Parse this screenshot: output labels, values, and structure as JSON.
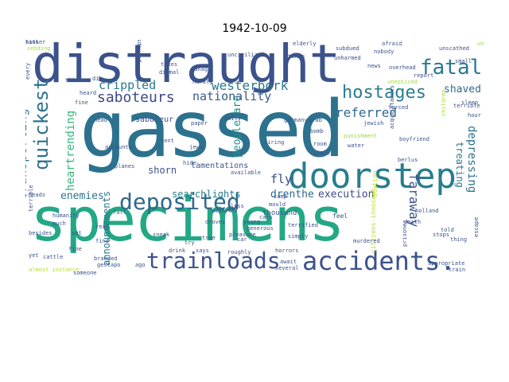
{
  "title": "1942-10-09",
  "words": [
    {
      "text": "specimens",
      "color": "#22a884"
    },
    {
      "text": "gassed",
      "color": "#2c728e"
    },
    {
      "text": "distraught",
      "color": "#3b528b"
    },
    {
      "text": "doorstep",
      "color": "#287d8e"
    },
    {
      "text": "accidents.",
      "color": "#3b528b"
    },
    {
      "text": "deposited",
      "color": "#31688e"
    },
    {
      "text": "trainloads",
      "color": "#3b528b"
    },
    {
      "text": "quickest",
      "color": "#2c728e"
    },
    {
      "text": "hostages",
      "color": "#287d8e"
    },
    {
      "text": "fatal",
      "color": "#2a788e"
    },
    {
      "text": "saboteurs",
      "color": "#3e4989"
    },
    {
      "text": "westerbork",
      "color": "#2a788e"
    },
    {
      "text": "nationality",
      "color": "#38598c"
    },
    {
      "text": "referred",
      "color": "#31688e"
    },
    {
      "text": "transporting",
      "color": "#2a788e"
    },
    {
      "text": "heartrending",
      "color": "#35b779"
    },
    {
      "text": "people-are",
      "color": "#21918c"
    },
    {
      "text": "faraway",
      "color": "#3b528b"
    },
    {
      "text": "depressing",
      "color": "#2c728e"
    },
    {
      "text": "treating",
      "color": "#2a788e"
    },
    {
      "text": "crippled",
      "color": "#2a788e"
    },
    {
      "text": "shaved",
      "color": "#31688e"
    },
    {
      "text": "enemies",
      "color": "#2c728e"
    },
    {
      "text": "searchlights",
      "color": "#287d8e"
    },
    {
      "text": "announcements",
      "color": "#2a788e"
    },
    {
      "text": "shorn",
      "color": "#3b528b"
    },
    {
      "text": "fly",
      "color": "#3e4989"
    },
    {
      "text": "drenthe",
      "color": "#31688e"
    },
    {
      "text": "execution",
      "color": "#3e4989"
    },
    {
      "text": "lamentations",
      "color": "#3b528b"
    },
    {
      "text": "saboteur",
      "color": "#3b528b"
    },
    {
      "text": "citizens-innocent",
      "color": "#b5de2b"
    },
    {
      "text": "station",
      "color": "#bddf26"
    },
    {
      "text": "thousand",
      "color": "#3b528b"
    },
    {
      "text": "jewish",
      "color": "#3b528b"
    },
    {
      "text": "firing",
      "color": "#3b528b"
    },
    {
      "text": "germany",
      "color": "#3b528b"
    },
    {
      "text": "grab",
      "color": "#3b528b"
    },
    {
      "text": "bomb",
      "color": "#3b528b"
    },
    {
      "text": "room",
      "color": "#3b528b"
    },
    {
      "text": "place",
      "color": "#3b528b"
    },
    {
      "text": "water",
      "color": "#3b528b"
    },
    {
      "text": "punishment",
      "color": "#a0da39"
    },
    {
      "text": "acquaintances",
      "color": "#3b528b"
    },
    {
      "text": "boyfriend",
      "color": "#3b528b"
    },
    {
      "text": "children",
      "color": "#a0da39"
    },
    {
      "text": "daily",
      "color": "#3b528b"
    },
    {
      "text": "paper",
      "color": "#3b528b"
    },
    {
      "text": "sent",
      "color": "#3b528b"
    },
    {
      "text": "jews",
      "color": "#3b528b"
    },
    {
      "text": "hide",
      "color": "#3b528b"
    },
    {
      "text": "planes",
      "color": "#3b528b"
    },
    {
      "text": "accounts",
      "color": "#3b528b"
    },
    {
      "text": "head",
      "color": "#3b528b"
    },
    {
      "text": "heard",
      "color": "#3b528b"
    },
    {
      "text": "fine",
      "color": "#3b528b"
    },
    {
      "text": "die",
      "color": "#3b528b"
    },
    {
      "text": "think",
      "color": "#3b528b"
    },
    {
      "text": "every",
      "color": "#3b528b"
    },
    {
      "text": "manage",
      "color": "#3b528b"
    },
    {
      "text": "hardly",
      "color": "#3b528b"
    },
    {
      "text": "takes",
      "color": "#3b528b"
    },
    {
      "text": "dismal",
      "color": "#3b528b"
    },
    {
      "text": "perhaps",
      "color": "#3b528b"
    },
    {
      "text": "unnoticed",
      "color": "#a0da39"
    },
    {
      "text": "overhead",
      "color": "#3b528b"
    },
    {
      "text": "taken",
      "color": "#3b528b"
    },
    {
      "text": "elderly",
      "color": "#3b528b"
    },
    {
      "text": "subdued",
      "color": "#3b528b"
    },
    {
      "text": "unharmed",
      "color": "#3b528b"
    },
    {
      "text": "afraid",
      "color": "#3b528b"
    },
    {
      "text": "nobody",
      "color": "#3b528b"
    },
    {
      "text": "unscathed",
      "color": "#3b528b"
    },
    {
      "text": "news",
      "color": "#3b528b"
    },
    {
      "text": "small",
      "color": "#3b528b"
    },
    {
      "text": "terrible",
      "color": "#3b528b"
    },
    {
      "text": "sleep",
      "color": "#3b528b"
    },
    {
      "text": "forced",
      "color": "#3b528b"
    },
    {
      "text": "report",
      "color": "#3b528b"
    },
    {
      "text": "hour",
      "color": "#3b528b"
    },
    {
      "text": "berlus",
      "color": "#3b528b"
    },
    {
      "text": "fall",
      "color": "#3b528b"
    },
    {
      "text": "heads",
      "color": "#3b528b"
    },
    {
      "text": "terrible",
      "color": "#3b528b"
    },
    {
      "text": "humanity",
      "color": "#3b528b"
    },
    {
      "text": "much",
      "color": "#3b528b"
    },
    {
      "text": "besides",
      "color": "#3b528b"
    },
    {
      "text": "set",
      "color": "#3b528b"
    },
    {
      "text": "fine",
      "color": "#3b528b"
    },
    {
      "text": "cattle",
      "color": "#3b528b"
    },
    {
      "text": "branded",
      "color": "#3b528b"
    },
    {
      "text": "gestapo",
      "color": "#3b528b"
    },
    {
      "text": "almost instance",
      "color": "#b5de2b"
    },
    {
      "text": "ago",
      "color": "#3b528b"
    },
    {
      "text": "drink",
      "color": "#3b528b"
    },
    {
      "text": "sneak",
      "color": "#3b528b"
    },
    {
      "text": "droves",
      "color": "#3b528b"
    },
    {
      "text": "depart",
      "color": "#3b528b"
    },
    {
      "text": "less",
      "color": "#3b528b"
    },
    {
      "text": "young",
      "color": "#3b528b"
    },
    {
      "text": "cars",
      "color": "#3b528b"
    },
    {
      "text": "feel",
      "color": "#3b528b"
    },
    {
      "text": "death",
      "color": "#3b528b"
    },
    {
      "text": "told",
      "color": "#3b528b"
    },
    {
      "text": "hitler",
      "color": "#3b528b"
    },
    {
      "text": "escape",
      "color": "#3b528b"
    },
    {
      "text": "stops",
      "color": "#3b528b"
    },
    {
      "text": "thing",
      "color": "#3b528b"
    },
    {
      "text": "murdered",
      "color": "#3b528b"
    },
    {
      "text": "appropriate",
      "color": "#3b528b"
    },
    {
      "text": "train",
      "color": "#3b528b"
    },
    {
      "text": "await",
      "color": "#3b528b"
    },
    {
      "text": "several",
      "color": "#3b528b"
    },
    {
      "text": "simply",
      "color": "#3b528b"
    },
    {
      "text": "roughly",
      "color": "#3b528b"
    },
    {
      "text": "horrors",
      "color": "#3b528b"
    },
    {
      "text": "holland",
      "color": "#3b528b"
    },
    {
      "text": "prisoner",
      "color": "#3b528b"
    },
    {
      "text": "sending",
      "color": "#a0da39"
    },
    {
      "text": "unwilling",
      "color": "#a0da39"
    },
    {
      "text": "uncivilized",
      "color": "#3b528b"
    },
    {
      "text": "camp",
      "color": "#3b528b"
    },
    {
      "text": "mould",
      "color": "#3b528b"
    },
    {
      "text": "available",
      "color": "#3b528b"
    },
    {
      "text": "generous",
      "color": "#3b528b"
    },
    {
      "text": "terrified",
      "color": "#3b528b"
    },
    {
      "text": "look",
      "color": "#3b528b"
    },
    {
      "text": "true",
      "color": "#3b528b"
    },
    {
      "text": "says",
      "color": "#3b528b"
    },
    {
      "text": "pleasure",
      "color": "#3b528b"
    },
    {
      "text": "try",
      "color": "#3b528b"
    },
    {
      "text": "yet",
      "color": "#3b528b"
    },
    {
      "text": "someone",
      "color": "#3b528b"
    },
    {
      "text": "find",
      "color": "#3b528b"
    },
    {
      "text": "read",
      "color": "#3b528b"
    },
    {
      "text": "big",
      "color": "#3b528b"
    },
    {
      "text": "car",
      "color": "#3b528b"
    }
  ]
}
